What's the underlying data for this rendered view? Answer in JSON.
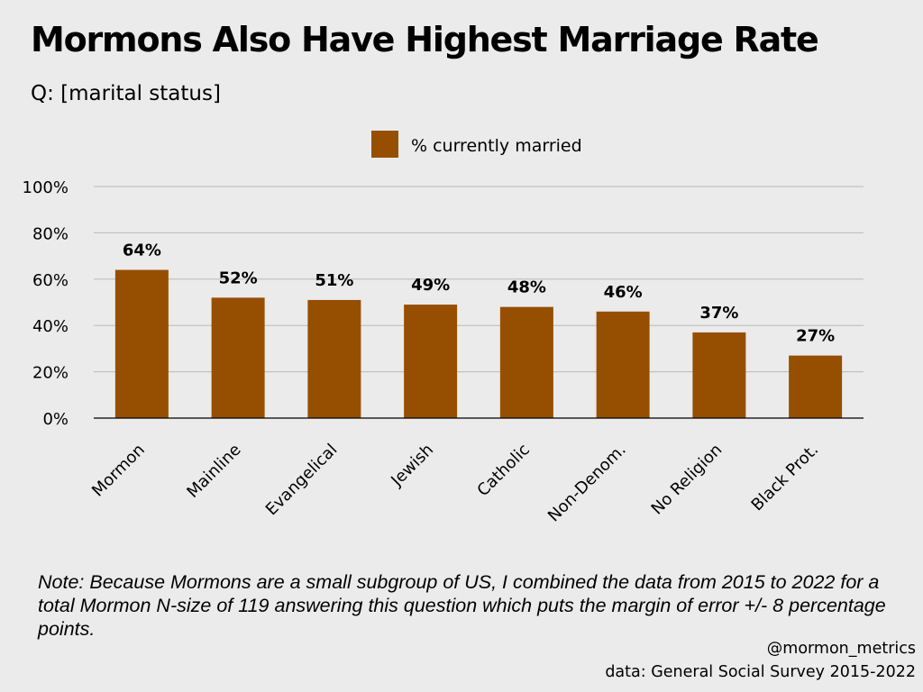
{
  "header": {
    "title": "Mormons Also Have Highest Marriage Rate",
    "subtitle": "Q: [marital status]"
  },
  "chart_data": {
    "type": "bar",
    "title": "Mormons Also Have Highest Marriage Rate",
    "subtitle": "Q: [marital status]",
    "categories": [
      "Mormon",
      "Mainline",
      "Evangelical",
      "Jewish",
      "Catholic",
      "Non-Denom.",
      "No Religion",
      "Black Prot."
    ],
    "series": [
      {
        "name": "% currently married",
        "values": [
          64,
          52,
          51,
          49,
          48,
          46,
          37,
          27
        ],
        "labels": [
          "64%",
          "52%",
          "51%",
          "49%",
          "48%",
          "46%",
          "37%",
          "27%"
        ]
      }
    ],
    "ylim": [
      0,
      100
    ],
    "yticks": [
      "0%",
      "20%",
      "40%",
      "60%",
      "80%",
      "100%"
    ],
    "xlabel": "",
    "ylabel": "",
    "grid": true,
    "legend_position": "top-center",
    "bar_color": "#964f01"
  },
  "footer": {
    "note": "Note: Because Mormons are a small subgroup of US, I combined the data from 2015 to 2022 for a total Mormon N-size of 119 answering this question which puts the margin of error +/- 8 percentage points.",
    "handle": "@mormon_metrics",
    "source": "data: General Social Survey 2015-2022"
  }
}
